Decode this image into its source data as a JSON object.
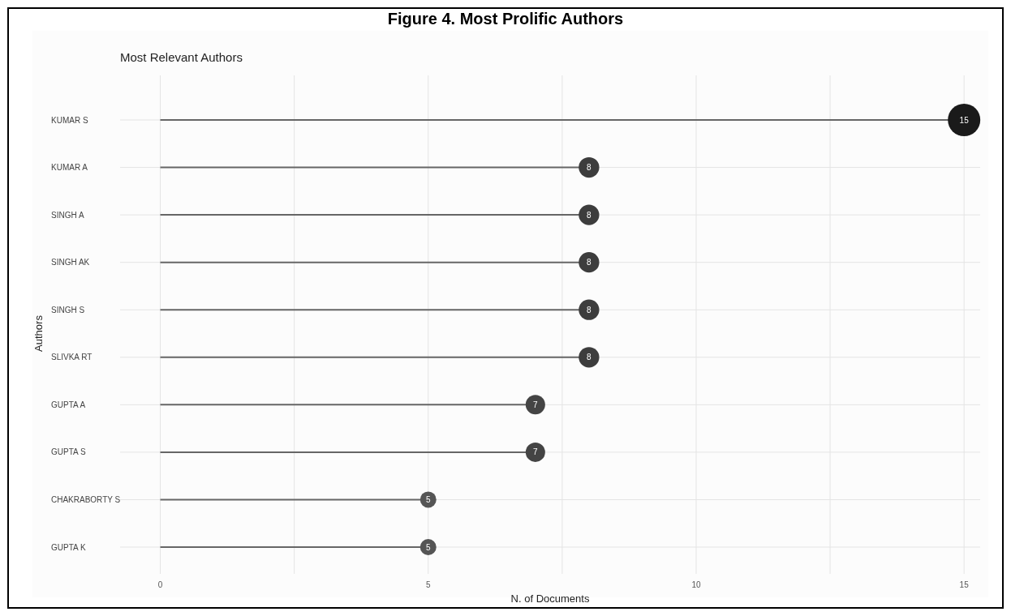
{
  "chart_data": {
    "type": "lollipop",
    "title": "Figure 4. Most Prolific Authors",
    "subtitle": "Most Relevant Authors",
    "xlabel": "N. of Documents",
    "ylabel": "Authors",
    "orientation": "horizontal",
    "categories": [
      "KUMAR S",
      "KUMAR A",
      "SINGH A",
      "SINGH AK",
      "SINGH S",
      "SLIVKA RT",
      "GUPTA A",
      "GUPTA S",
      "CHAKRABORTY S",
      "GUPTA K"
    ],
    "values": [
      15,
      8,
      8,
      8,
      8,
      8,
      7,
      7,
      5,
      5
    ],
    "sizes": [
      1,
      0.4,
      0.4,
      0.4,
      0.4,
      0.4,
      0.36,
      0.36,
      0.25,
      0.25
    ],
    "colors": [
      "#1a1a1a",
      "#3d3d3d",
      "#3d3d3d",
      "#3d3d3d",
      "#3d3d3d",
      "#3d3d3d",
      "#444444",
      "#444444",
      "#555555",
      "#555555"
    ],
    "xlim": [
      -0.75,
      15.3
    ],
    "xticks": [
      0,
      {
        "value": 2.5,
        "label": null
      },
      5,
      {
        "value": 7.5,
        "label": null
      },
      10,
      {
        "value": 12.5,
        "label": null
      },
      15
    ],
    "grid": true,
    "data_labels": true
  }
}
